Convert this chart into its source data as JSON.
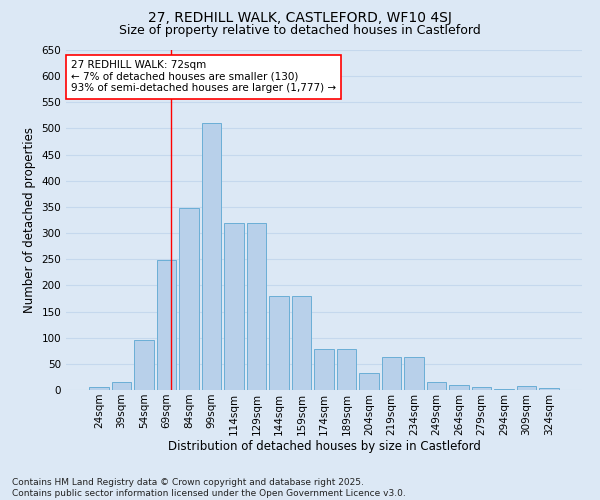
{
  "title1": "27, REDHILL WALK, CASTLEFORD, WF10 4SJ",
  "title2": "Size of property relative to detached houses in Castleford",
  "xlabel": "Distribution of detached houses by size in Castleford",
  "ylabel": "Number of detached properties",
  "categories": [
    "24sqm",
    "39sqm",
    "54sqm",
    "69sqm",
    "84sqm",
    "99sqm",
    "114sqm",
    "129sqm",
    "144sqm",
    "159sqm",
    "174sqm",
    "189sqm",
    "204sqm",
    "219sqm",
    "234sqm",
    "249sqm",
    "264sqm",
    "279sqm",
    "294sqm",
    "309sqm",
    "324sqm"
  ],
  "values": [
    5,
    15,
    95,
    248,
    348,
    510,
    320,
    320,
    180,
    180,
    78,
    78,
    33,
    63,
    63,
    15,
    10,
    5,
    2,
    7,
    4
  ],
  "bar_color": "#b8d0ea",
  "bar_edge_color": "#6baed6",
  "background_color": "#dce8f5",
  "grid_color": "#c5d8ed",
  "vline_x": 3.18,
  "vline_color": "red",
  "annotation_text": "27 REDHILL WALK: 72sqm\n← 7% of detached houses are smaller (130)\n93% of semi-detached houses are larger (1,777) →",
  "annotation_box_color": "white",
  "annotation_box_edge": "red",
  "ylim": [
    0,
    650
  ],
  "yticks": [
    0,
    50,
    100,
    150,
    200,
    250,
    300,
    350,
    400,
    450,
    500,
    550,
    600,
    650
  ],
  "footer": "Contains HM Land Registry data © Crown copyright and database right 2025.\nContains public sector information licensed under the Open Government Licence v3.0.",
  "title1_fontsize": 10,
  "title2_fontsize": 9,
  "xlabel_fontsize": 8.5,
  "ylabel_fontsize": 8.5,
  "tick_fontsize": 7.5,
  "annotation_fontsize": 7.5,
  "footer_fontsize": 6.5
}
